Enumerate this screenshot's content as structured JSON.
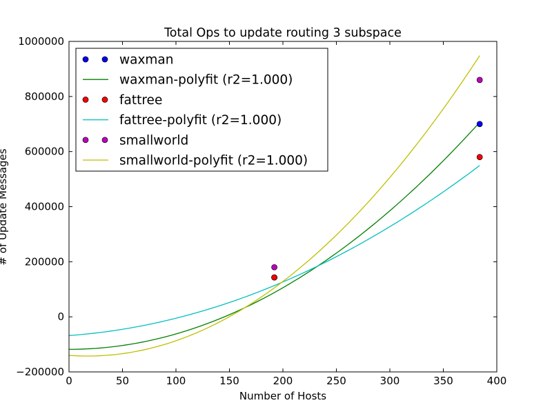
{
  "chart_data": {
    "type": "scatter",
    "title": "Total Ops to update routing 3 subspace",
    "xlabel": "Number of Hosts",
    "ylabel": "# of Update Messages",
    "xlim": [
      0,
      400
    ],
    "ylim": [
      -200000,
      1000000
    ],
    "x_ticks": [
      "0",
      "50",
      "100",
      "150",
      "200",
      "250",
      "300",
      "350",
      "400"
    ],
    "y_ticks": [
      "−200000",
      "0",
      "200000",
      "400000",
      "600000",
      "800000",
      "1000000"
    ],
    "x_tick_values": [
      0,
      50,
      100,
      150,
      200,
      250,
      300,
      350,
      400
    ],
    "y_tick_values": [
      -200000,
      0,
      200000,
      400000,
      600000,
      800000,
      1000000
    ],
    "grid": false,
    "legend_position": "top-left",
    "series": [
      {
        "name": "waxman",
        "kind": "points",
        "color": "#0000ff",
        "x": [
          192,
          384
        ],
        "y": [
          143000,
          700000
        ]
      },
      {
        "name": "waxman-polyfit (r2=1.000)",
        "kind": "line",
        "color": "#008000",
        "x_range": [
          0,
          384
        ],
        "poly": [
          -118000,
          0,
          5.59
        ]
      },
      {
        "name": "fattree",
        "kind": "points",
        "color": "#ff0000",
        "x": [
          192,
          384
        ],
        "y": [
          143000,
          580000
        ]
      },
      {
        "name": "fattree-polyfit (r2=1.000)",
        "kind": "line",
        "color": "#00bfbf",
        "x_range": [
          0,
          384
        ],
        "poly": [
          -68000,
          283,
          3.45
        ]
      },
      {
        "name": "smallworld",
        "kind": "points",
        "color": "#bf00bf",
        "x": [
          192,
          384
        ],
        "y": [
          180000,
          860000
        ]
      },
      {
        "name": "smallworld-polyfit (r2=1.000)",
        "kind": "line",
        "color": "#bfbf00",
        "x_range": [
          0,
          384
        ],
        "poly": [
          -140000,
          -280,
          8.11
        ]
      }
    ]
  }
}
